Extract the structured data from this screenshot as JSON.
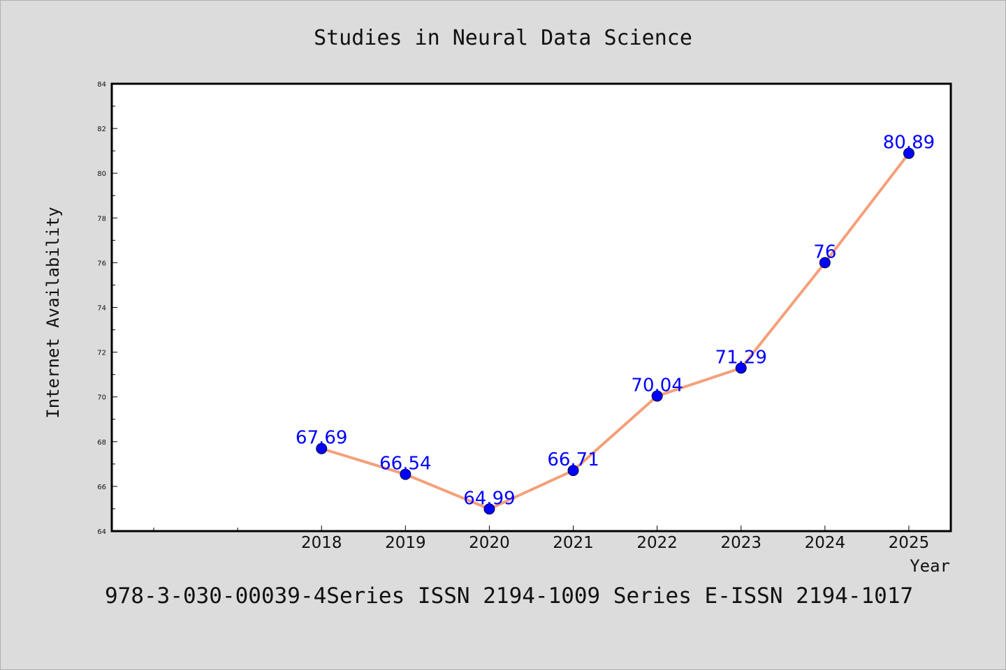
{
  "colors": {
    "figure_background": "#dcdcdc",
    "plot_background": "#ffffff",
    "line": "#f4a07a",
    "marker": "#0000ff",
    "data_label": "#0000ff",
    "axis": "#000000"
  },
  "footer": "978-3-030-00039-4Series ISSN 2194-1009 Series E-ISSN 2194-1017",
  "chart_data": {
    "type": "line",
    "title": "Studies in Neural Data Science",
    "xlabel": "Year",
    "ylabel": "Internet Availability",
    "categories": [
      "2018",
      "2019",
      "2020",
      "2021",
      "2022",
      "2023",
      "2024",
      "2025"
    ],
    "x": [
      2018,
      2019,
      2020,
      2021,
      2022,
      2023,
      2024,
      2025
    ],
    "values": [
      67.69,
      66.54,
      64.99,
      66.71,
      70.04,
      71.29,
      76,
      80.89
    ],
    "data_labels": [
      "67.69",
      "66.54",
      "64.99",
      "66.71",
      "70.04",
      "71.29",
      "76",
      "80.89"
    ],
    "xlim": [
      2015.5,
      2025.5
    ],
    "ylim": [
      64,
      84
    ],
    "yticks": [
      64,
      66,
      68,
      70,
      72,
      74,
      76,
      78,
      80,
      82,
      84
    ],
    "ytick_labels": [
      "64",
      "66",
      "68",
      "70",
      "72",
      "74",
      "76",
      "78",
      "80",
      "82",
      "84"
    ],
    "xticks_unlabeled": [
      2016,
      2017
    ],
    "grid": false,
    "legend": "none",
    "markers": "filled circles"
  }
}
